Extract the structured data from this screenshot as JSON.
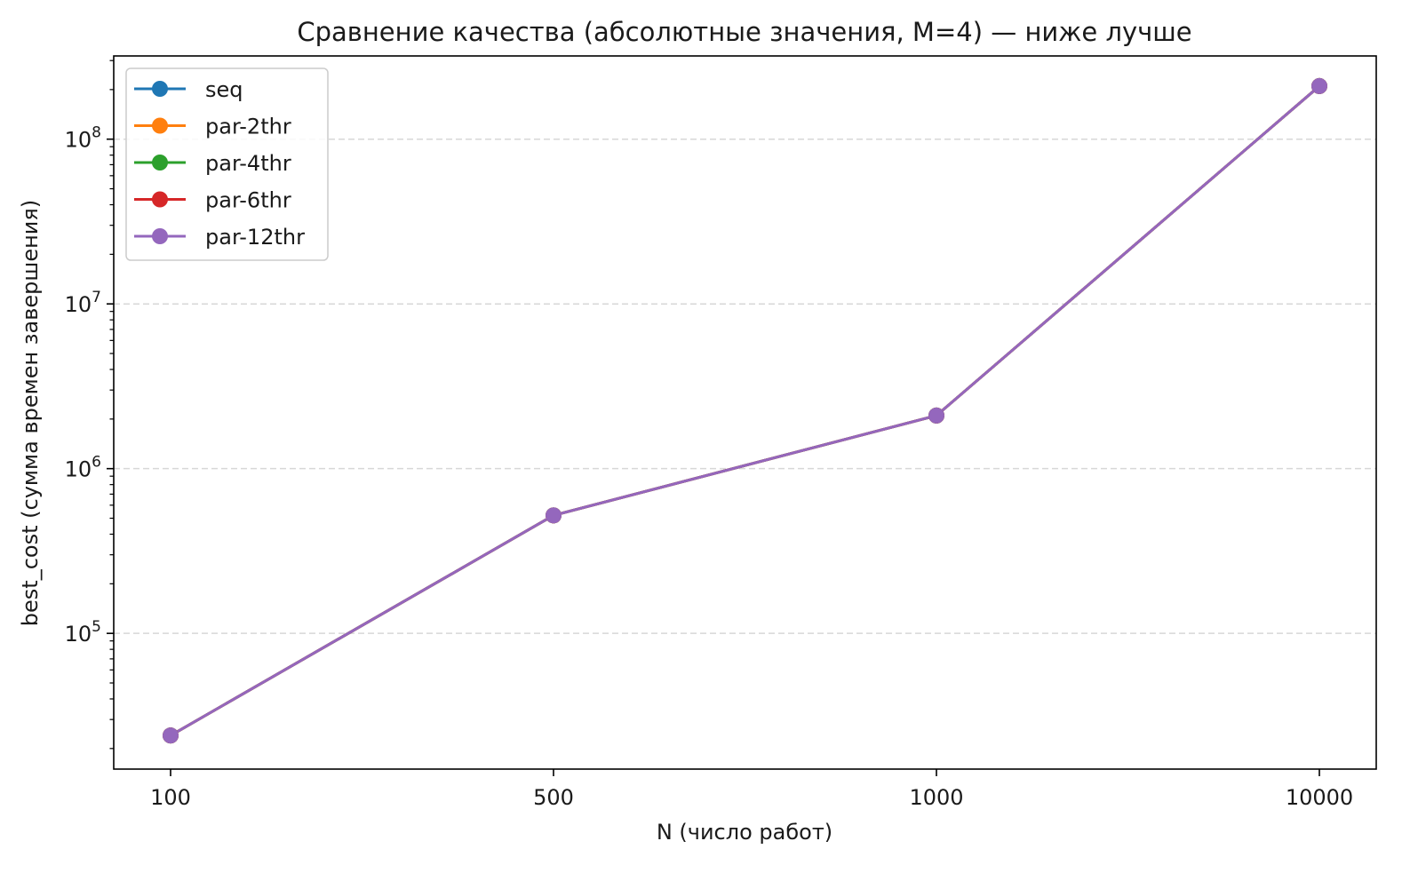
{
  "chart_data": {
    "type": "line",
    "title": "Сравнение качества (абсолютные значения, M=4) — ниже лучше",
    "xlabel": "N (число работ)",
    "ylabel": "best_cost (сумма времен завершения)",
    "x_scale": "categorical",
    "y_scale": "log",
    "categories": [
      "100",
      "500",
      "1000",
      "10000"
    ],
    "ylim": [
      15000,
      320000000
    ],
    "yticks": [
      {
        "value": 100000,
        "base": "10",
        "exp": "5"
      },
      {
        "value": 1000000,
        "base": "10",
        "exp": "6"
      },
      {
        "value": 10000000,
        "base": "10",
        "exp": "7"
      },
      {
        "value": 100000000,
        "base": "10",
        "exp": "8"
      }
    ],
    "grid": "y-major-dashed",
    "legend_position": "top-left",
    "series": [
      {
        "name": "seq",
        "color": "#1f77b4",
        "values": [
          24000,
          520000,
          2100000,
          210000000
        ]
      },
      {
        "name": "par-2thr",
        "color": "#ff7f0e",
        "values": [
          24000,
          520000,
          2100000,
          210000000
        ]
      },
      {
        "name": "par-4thr",
        "color": "#2ca02c",
        "values": [
          24000,
          520000,
          2100000,
          210000000
        ]
      },
      {
        "name": "par-6thr",
        "color": "#d62728",
        "values": [
          24000,
          520000,
          2100000,
          210000000
        ]
      },
      {
        "name": "par-12thr",
        "color": "#9467bd",
        "values": [
          24000,
          520000,
          2100000,
          210000000
        ]
      }
    ]
  }
}
